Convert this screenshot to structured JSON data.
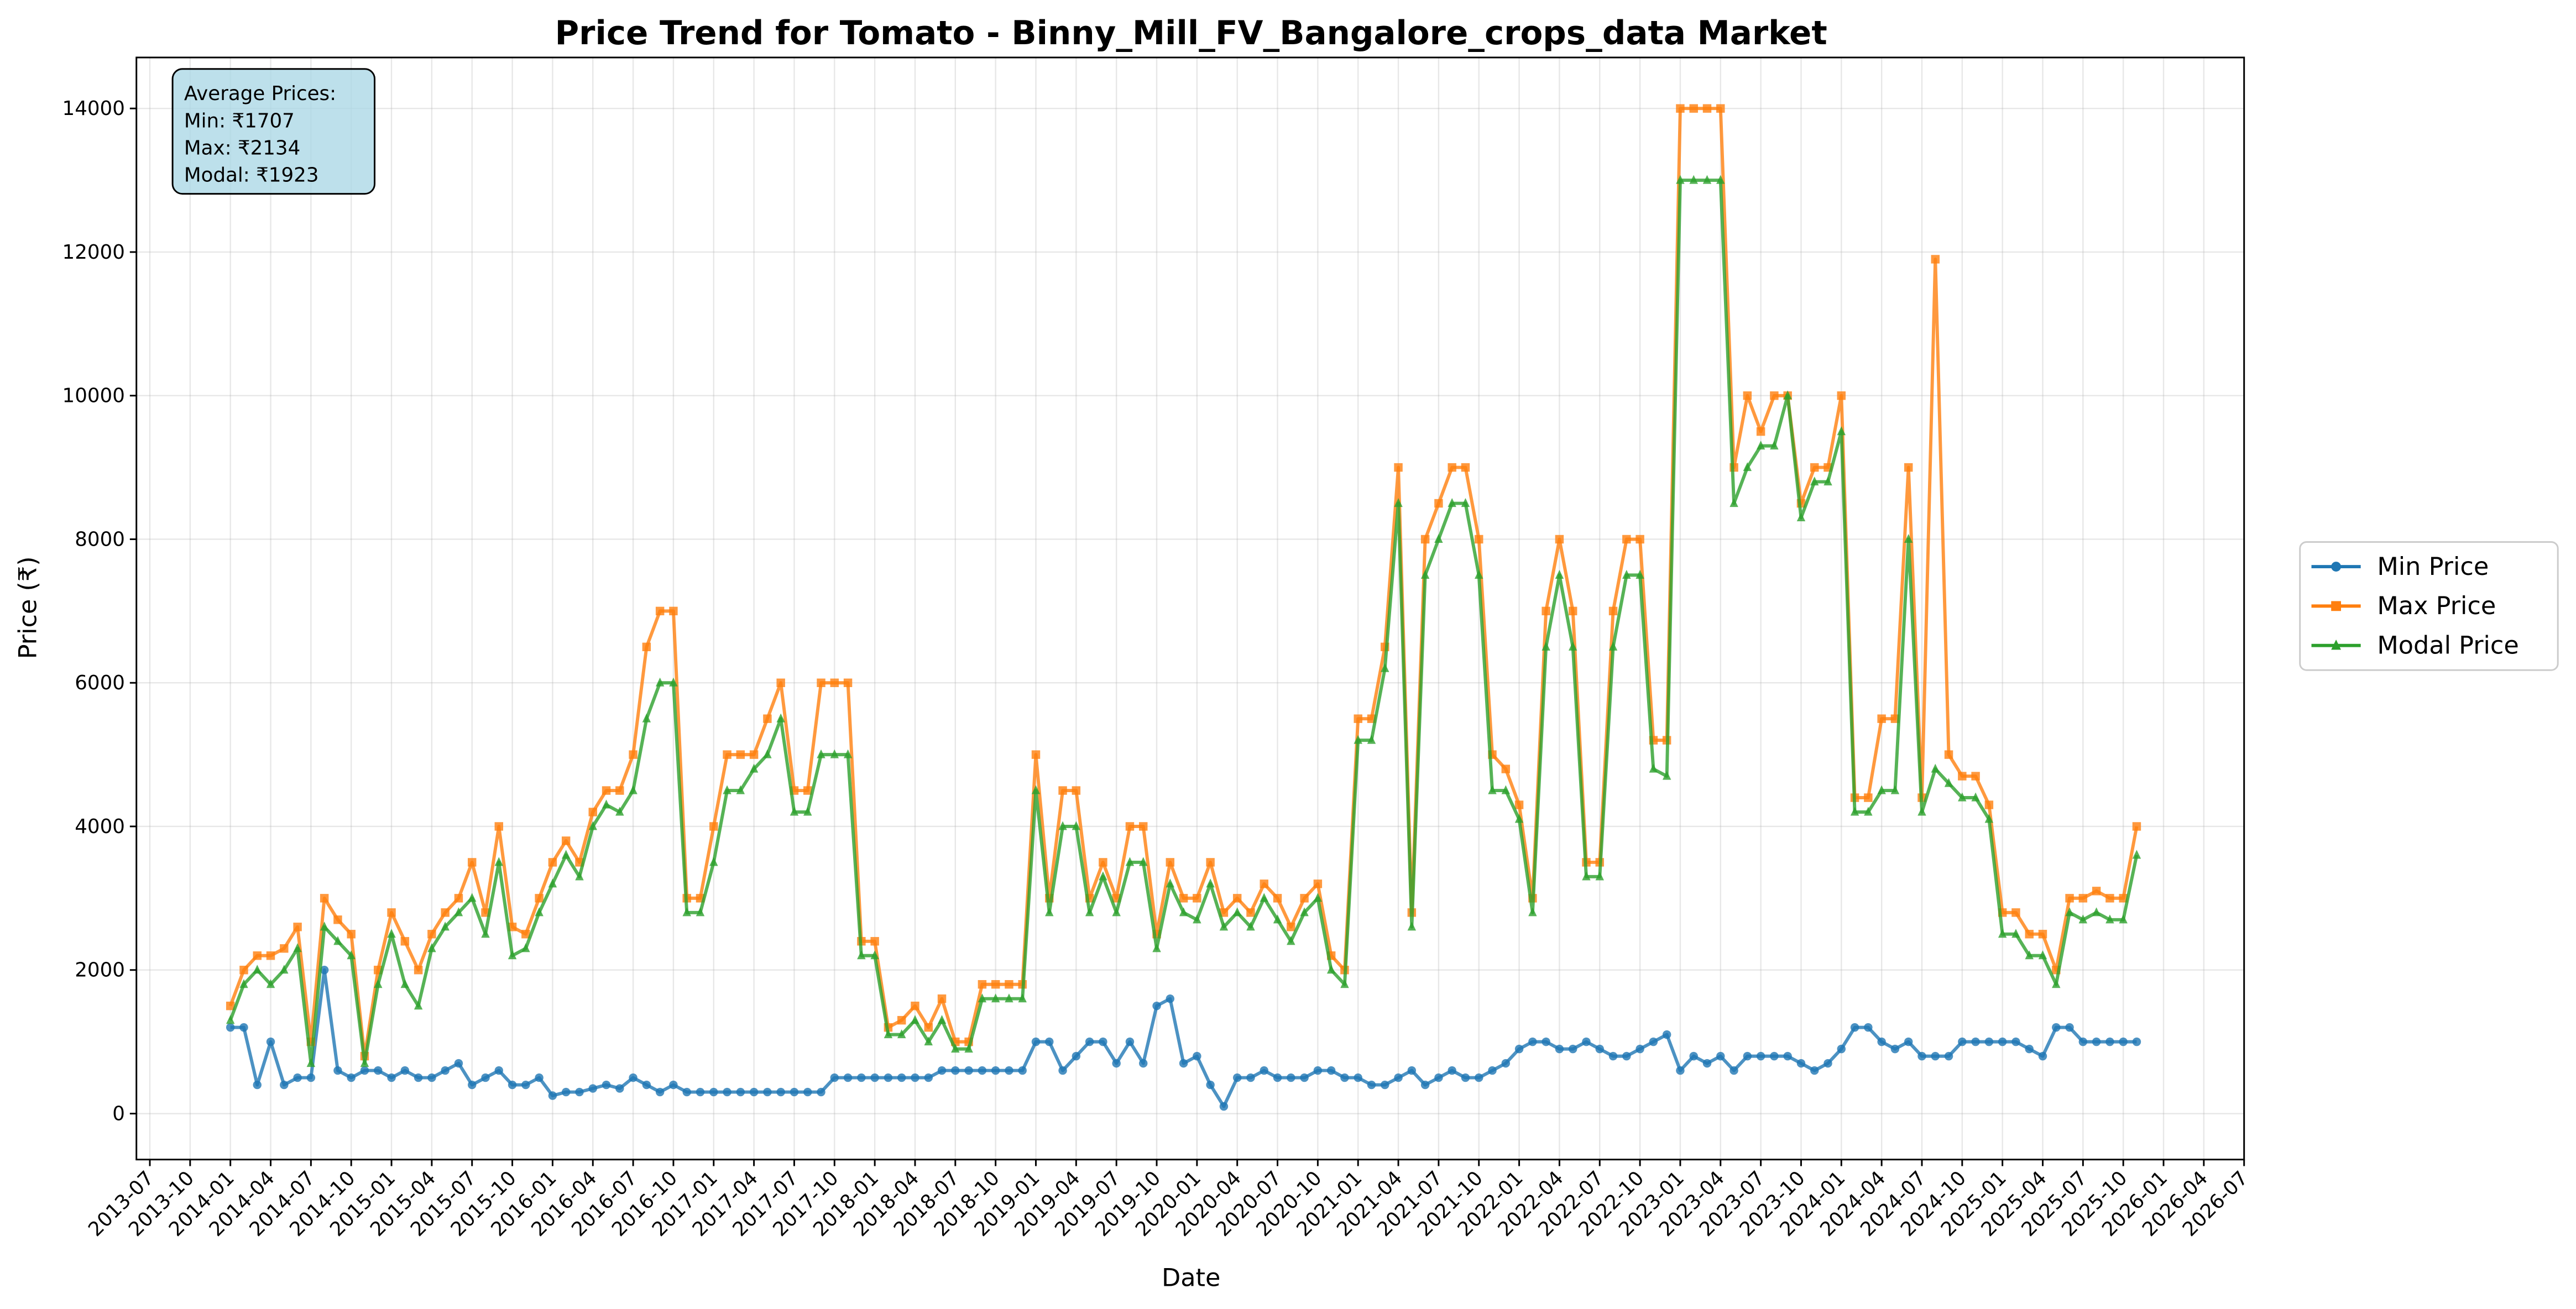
{
  "chart_data": {
    "type": "line",
    "title": "Price Trend for Tomato - Binny_Mill_FV_Bangalore_crops_data Market",
    "x_label": "Date",
    "y_label": "Price (₹)",
    "annotation": [
      "Average Prices:",
      "Min: ₹1707",
      "Max: ₹2134",
      "Modal: ₹1923"
    ],
    "grid": true,
    "legend": "outside right",
    "xlim": [
      "2013-06",
      "2026-07"
    ],
    "ylim": [
      -640,
      14710
    ],
    "yticks": [
      0,
      2000,
      4000,
      6000,
      8000,
      10000,
      12000,
      14000
    ],
    "xticks": [
      "2013-07",
      "2013-10",
      "2014-01",
      "2014-04",
      "2014-07",
      "2014-10",
      "2015-01",
      "2015-04",
      "2015-07",
      "2015-10",
      "2016-01",
      "2016-04",
      "2016-07",
      "2016-10",
      "2017-01",
      "2017-04",
      "2017-07",
      "2017-10",
      "2018-01",
      "2018-04",
      "2018-07",
      "2018-10",
      "2019-01",
      "2019-04",
      "2019-07",
      "2019-10",
      "2020-01",
      "2020-04",
      "2020-07",
      "2020-10",
      "2021-01",
      "2021-04",
      "2021-07",
      "2021-10",
      "2022-01",
      "2022-04",
      "2022-07",
      "2022-10",
      "2023-01",
      "2023-04",
      "2023-07",
      "2023-10",
      "2024-01",
      "2024-04",
      "2024-07",
      "2024-10",
      "2025-01",
      "2025-04",
      "2025-07",
      "2025-10",
      "2026-01",
      "2026-04",
      "2026-07"
    ],
    "x": [
      "2014-01",
      "2014-02",
      "2014-03",
      "2014-04",
      "2014-05",
      "2014-06",
      "2014-07",
      "2014-08",
      "2014-09",
      "2014-10",
      "2014-11",
      "2014-12",
      "2015-01",
      "2015-02",
      "2015-03",
      "2015-04",
      "2015-05",
      "2015-06",
      "2015-07",
      "2015-08",
      "2015-09",
      "2015-10",
      "2015-11",
      "2015-12",
      "2016-01",
      "2016-02",
      "2016-03",
      "2016-04",
      "2016-05",
      "2016-06",
      "2016-07",
      "2016-08",
      "2016-09",
      "2016-10",
      "2016-11",
      "2016-12",
      "2017-01",
      "2017-02",
      "2017-03",
      "2017-04",
      "2017-05",
      "2017-06",
      "2017-07",
      "2017-08",
      "2017-09",
      "2017-10",
      "2017-11",
      "2017-12",
      "2018-01",
      "2018-02",
      "2018-03",
      "2018-04",
      "2018-05",
      "2018-06",
      "2018-07",
      "2018-08",
      "2018-09",
      "2018-10",
      "2018-11",
      "2018-12",
      "2019-01",
      "2019-02",
      "2019-03",
      "2019-04",
      "2019-05",
      "2019-06",
      "2019-07",
      "2019-08",
      "2019-09",
      "2019-10",
      "2019-11",
      "2019-12",
      "2020-01",
      "2020-02",
      "2020-03",
      "2020-04",
      "2020-05",
      "2020-06",
      "2020-07",
      "2020-08",
      "2020-09",
      "2020-10",
      "2020-11",
      "2020-12",
      "2021-01",
      "2021-02",
      "2021-03",
      "2021-04",
      "2021-05",
      "2021-06",
      "2021-07",
      "2021-08",
      "2021-09",
      "2021-10",
      "2021-11",
      "2021-12",
      "2022-01",
      "2022-02",
      "2022-03",
      "2022-04",
      "2022-05",
      "2022-06",
      "2022-07",
      "2022-08",
      "2022-09",
      "2022-10",
      "2022-11",
      "2022-12",
      "2023-01",
      "2023-02",
      "2023-03",
      "2023-04",
      "2023-05",
      "2023-06",
      "2023-07",
      "2023-08",
      "2023-09",
      "2023-10",
      "2023-11",
      "2023-12",
      "2024-01",
      "2024-02",
      "2024-03",
      "2024-04",
      "2024-05",
      "2024-06",
      "2024-07",
      "2024-08",
      "2024-09",
      "2024-10",
      "2024-11",
      "2024-12",
      "2025-01",
      "2025-02",
      "2025-03",
      "2025-04",
      "2025-05",
      "2025-06",
      "2025-07",
      "2025-08",
      "2025-09",
      "2025-10",
      "2025-11"
    ],
    "series": [
      {
        "name": "Min Price",
        "color": "#1f77b4",
        "marker": "circle",
        "values": [
          1200,
          1200,
          400,
          1000,
          400,
          500,
          500,
          2000,
          600,
          500,
          600,
          600,
          500,
          600,
          500,
          500,
          600,
          700,
          400,
          500,
          600,
          400,
          400,
          500,
          250,
          300,
          300,
          350,
          400,
          350,
          500,
          400,
          300,
          400,
          300,
          300,
          300,
          300,
          300,
          300,
          300,
          300,
          300,
          300,
          300,
          500,
          500,
          500,
          500,
          500,
          500,
          500,
          500,
          600,
          600,
          600,
          600,
          600,
          600,
          600,
          1000,
          1000,
          600,
          800,
          1000,
          1000,
          700,
          1000,
          700,
          1500,
          1600,
          700,
          800,
          400,
          100,
          500,
          500,
          600,
          500,
          500,
          500,
          600,
          600,
          500,
          500,
          400,
          400,
          500,
          600,
          400,
          500,
          600,
          500,
          500,
          600,
          700,
          900,
          1000,
          1000,
          900,
          900,
          1000,
          900,
          800,
          800,
          900,
          1000,
          1100,
          600,
          800,
          700,
          800,
          600,
          800,
          800,
          800,
          800,
          700,
          600,
          700,
          900,
          1200,
          1200,
          1000,
          900,
          1000,
          800,
          800,
          800,
          1000,
          1000,
          1000,
          1000,
          1000,
          900,
          800,
          1200,
          1200,
          1000,
          1000,
          1000,
          1000,
          1000
        ]
      },
      {
        "name": "Max Price",
        "color": "#ff7f0e",
        "marker": "square",
        "values": [
          1500,
          2000,
          2200,
          2200,
          2300,
          2600,
          1000,
          3000,
          2700,
          2500,
          800,
          2000,
          2800,
          2400,
          2000,
          2500,
          2800,
          3000,
          3500,
          2800,
          4000,
          2600,
          2500,
          3000,
          3500,
          3800,
          3500,
          4200,
          4500,
          4500,
          5000,
          6500,
          7000,
          7000,
          3000,
          3000,
          4000,
          5000,
          5000,
          5000,
          5500,
          6000,
          4500,
          4500,
          6000,
          6000,
          6000,
          2400,
          2400,
          1200,
          1300,
          1500,
          1200,
          1600,
          1000,
          1000,
          1800,
          1800,
          1800,
          1800,
          5000,
          3000,
          4500,
          4500,
          3000,
          3500,
          3000,
          4000,
          4000,
          2500,
          3500,
          3000,
          3000,
          3500,
          2800,
          3000,
          2800,
          3200,
          3000,
          2600,
          3000,
          3200,
          2200,
          2000,
          5500,
          5500,
          6500,
          9000,
          2800,
          8000,
          8500,
          9000,
          9000,
          8000,
          5000,
          4800,
          4300,
          3000,
          7000,
          8000,
          7000,
          3500,
          3500,
          7000,
          8000,
          8000,
          5200,
          5200,
          14000,
          14000,
          14000,
          14000,
          9000,
          10000,
          9500,
          10000,
          10000,
          8500,
          9000,
          9000,
          10000,
          4400,
          4400,
          5500,
          5500,
          9000,
          4400,
          11900,
          5000,
          4700,
          4700,
          4300,
          2800,
          2800,
          2500,
          2500,
          2000,
          3000,
          3000,
          3100,
          3000,
          3000,
          4000
        ]
      },
      {
        "name": "Modal Price",
        "color": "#2ca02c",
        "marker": "triangle",
        "values": [
          1300,
          1800,
          2000,
          1800,
          2000,
          2300,
          700,
          2600,
          2400,
          2200,
          700,
          1800,
          2500,
          1800,
          1500,
          2300,
          2600,
          2800,
          3000,
          2500,
          3500,
          2200,
          2300,
          2800,
          3200,
          3600,
          3300,
          4000,
          4300,
          4200,
          4500,
          5500,
          6000,
          6000,
          2800,
          2800,
          3500,
          4500,
          4500,
          4800,
          5000,
          5500,
          4200,
          4200,
          5000,
          5000,
          5000,
          2200,
          2200,
          1100,
          1100,
          1300,
          1000,
          1300,
          900,
          900,
          1600,
          1600,
          1600,
          1600,
          4500,
          2800,
          4000,
          4000,
          2800,
          3300,
          2800,
          3500,
          3500,
          2300,
          3200,
          2800,
          2700,
          3200,
          2600,
          2800,
          2600,
          3000,
          2700,
          2400,
          2800,
          3000,
          2000,
          1800,
          5200,
          5200,
          6200,
          8500,
          2600,
          7500,
          8000,
          8500,
          8500,
          7500,
          4500,
          4500,
          4100,
          2800,
          6500,
          7500,
          6500,
          3300,
          3300,
          6500,
          7500,
          7500,
          4800,
          4700,
          13000,
          13000,
          13000,
          13000,
          8500,
          9000,
          9300,
          9300,
          10000,
          8300,
          8800,
          8800,
          9500,
          4200,
          4200,
          4500,
          4500,
          8000,
          4200,
          4800,
          4600,
          4400,
          4400,
          4100,
          2500,
          2500,
          2200,
          2200,
          1800,
          2800,
          2700,
          2800,
          2700,
          2700,
          3600
        ]
      }
    ]
  }
}
